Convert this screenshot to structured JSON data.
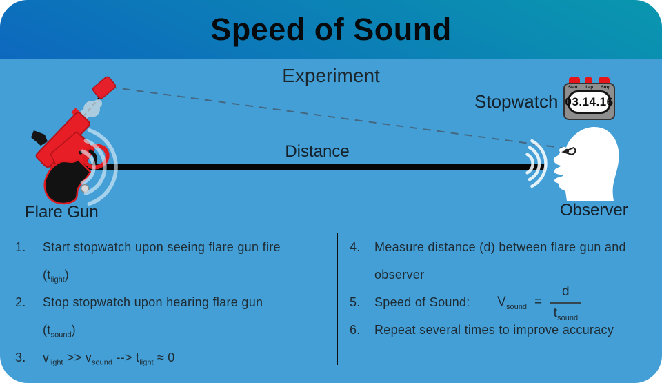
{
  "title": "Speed of Sound",
  "subtitle": "Experiment",
  "colors": {
    "background_blue": "#449fd6",
    "header_teal": "#0a97ae",
    "header_blue": "#0d68be",
    "flare_red": "#e81e26",
    "text_dark": "#1e2b33"
  },
  "diagram": {
    "flare_gun_label": "Flare Gun",
    "distance_label": "Distance",
    "stopwatch_label": "Stopwatch",
    "observer_label": "Observer",
    "stopwatch": {
      "buttons": [
        "Start",
        "Lap",
        "Stop"
      ],
      "display": "03.14.16"
    }
  },
  "instructions": {
    "left": [
      {
        "num": "1.",
        "lines": [
          [
            {
              "t": "Start stopwatch upon seeing flare gun fire"
            }
          ],
          [
            {
              "t": "(t"
            },
            {
              "s": "light"
            },
            {
              "t": ")"
            }
          ]
        ]
      },
      {
        "num": "2.",
        "lines": [
          [
            {
              "t": "Stop stopwatch upon hearing flare gun"
            }
          ],
          [
            {
              "t": "(t"
            },
            {
              "s": "sound"
            },
            {
              "t": ")"
            }
          ]
        ]
      },
      {
        "num": "3.",
        "lines": [
          [
            {
              "t": "v"
            },
            {
              "s": "light"
            },
            {
              "t": " >> v"
            },
            {
              "s": "sound"
            },
            {
              "t": " --> t"
            },
            {
              "s": "light"
            },
            {
              "t": " ≈ 0"
            }
          ]
        ]
      }
    ],
    "right": [
      {
        "num": "4.",
        "lines": [
          [
            {
              "t": "Measure distance (d) between flare gun and"
            }
          ],
          [
            {
              "t": "observer"
            }
          ]
        ]
      },
      {
        "num": "5.",
        "lines": [
          [
            {
              "t": "Speed of Sound:"
            }
          ]
        ],
        "formula": {
          "lhs": "V",
          "lhs_sub": "sound",
          "eq": "=",
          "num": "d",
          "den": "t",
          "den_sub": "sound"
        }
      },
      {
        "num": "6.",
        "lines": [
          [
            {
              "t": "Repeat several times to improve accuracy"
            }
          ]
        ]
      }
    ]
  }
}
